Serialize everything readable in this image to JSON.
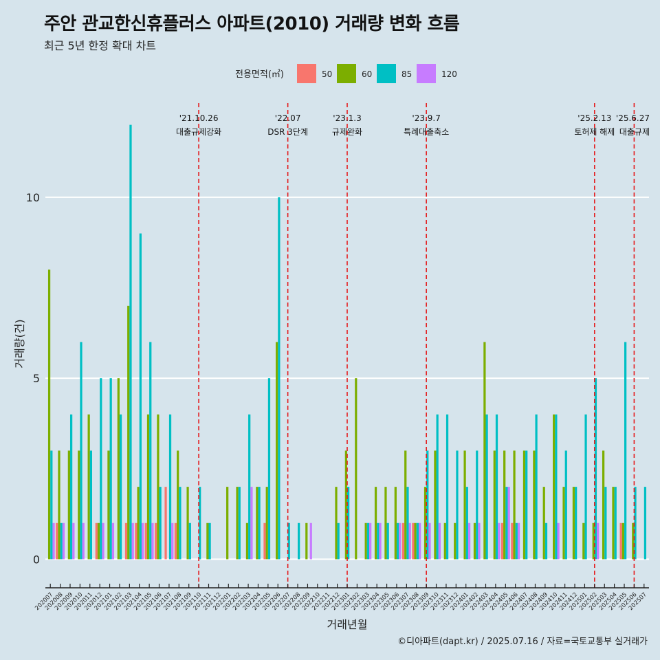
{
  "header": {
    "title": "주안 관교한신휴플러스 아파트(2010) 거래량 변화 흐름",
    "subtitle": "최근 5년 한정 확대 차트"
  },
  "caption": "©디아파트(dapt.kr) / 2025.07.16 / 자료=국토교통부 실거래가",
  "colors": {
    "background": "#d6e4ec",
    "50": "#f8766d",
    "60": "#7cae00",
    "85": "#00bfc4",
    "120": "#c77cff",
    "event_line": "#e41a1c",
    "grid": "#ffffff"
  },
  "chart_data": {
    "type": "bar",
    "title": "주안 관교한신휴플러스 아파트(2010) 거래량 변화 흐름",
    "subtitle": "최근 5년 한정 확대 차트",
    "xlabel": "거래년월",
    "ylabel": "거래량(건)",
    "ylim": [
      -0.6,
      12.6
    ],
    "yticks": [
      0,
      5,
      10
    ],
    "legend_title": "전용면적(㎡)",
    "legend_position": "top",
    "categories": [
      "202007",
      "202008",
      "202009",
      "202010",
      "202011",
      "202012",
      "202101",
      "202102",
      "202103",
      "202104",
      "202105",
      "202106",
      "202107",
      "202108",
      "202109",
      "202110",
      "202111",
      "202112",
      "202201",
      "202202",
      "202203",
      "202204",
      "202205",
      "202206",
      "202207",
      "202208",
      "202209",
      "202210",
      "202211",
      "202212",
      "202301",
      "202302",
      "202303",
      "202304",
      "202305",
      "202306",
      "202307",
      "202308",
      "202309",
      "202310",
      "202311",
      "202312",
      "202401",
      "202402",
      "202403",
      "202404",
      "202405",
      "202406",
      "202407",
      "202408",
      "202409",
      "202410",
      "202411",
      "202412",
      "202501",
      "202502",
      "202503",
      "202504",
      "202505",
      "202506",
      "202507"
    ],
    "series": [
      {
        "name": "50",
        "values": [
          0,
          1,
          0,
          0,
          0,
          1,
          0,
          0,
          1,
          1,
          1,
          1,
          2,
          1,
          0,
          0,
          0,
          0,
          0,
          0,
          0,
          0,
          1,
          0,
          0,
          0,
          0,
          0,
          0,
          0,
          0,
          0,
          0,
          0,
          0,
          0,
          1,
          1,
          0,
          0,
          0,
          0,
          0,
          0,
          0,
          0,
          1,
          1,
          0,
          0,
          0,
          0,
          0,
          0,
          0,
          0,
          0,
          0,
          1,
          0,
          0
        ]
      },
      {
        "name": "60",
        "values": [
          8,
          3,
          3,
          3,
          4,
          1,
          3,
          5,
          7,
          2,
          4,
          4,
          0,
          3,
          2,
          0,
          1,
          0,
          2,
          2,
          1,
          2,
          2,
          6,
          0,
          0,
          1,
          0,
          0,
          2,
          3,
          5,
          1,
          2,
          2,
          2,
          3,
          1,
          2,
          3,
          1,
          1,
          3,
          1,
          6,
          3,
          3,
          3,
          3,
          3,
          2,
          4,
          2,
          2,
          1,
          1,
          3,
          2,
          1,
          1,
          0
        ]
      },
      {
        "name": "85",
        "values": [
          3,
          1,
          4,
          6,
          3,
          5,
          5,
          4,
          12,
          9,
          6,
          2,
          4,
          2,
          1,
          2,
          1,
          0,
          0,
          2,
          4,
          2,
          5,
          10,
          1,
          1,
          0,
          0,
          0,
          1,
          2,
          0,
          1,
          1,
          1,
          1,
          2,
          1,
          3,
          4,
          4,
          3,
          2,
          3,
          4,
          4,
          2,
          1,
          3,
          4,
          1,
          4,
          3,
          2,
          4,
          5,
          2,
          2,
          6,
          2,
          2
        ]
      },
      {
        "name": "120",
        "values": [
          1,
          1,
          1,
          1,
          0,
          1,
          1,
          0,
          1,
          1,
          1,
          0,
          1,
          0,
          0,
          0,
          0,
          0,
          0,
          0,
          2,
          0,
          0,
          0,
          0,
          0,
          1,
          0,
          0,
          0,
          0,
          0,
          1,
          1,
          0,
          1,
          1,
          1,
          1,
          1,
          0,
          0,
          1,
          1,
          0,
          1,
          2,
          1,
          0,
          0,
          0,
          1,
          0,
          0,
          0,
          1,
          0,
          0,
          0,
          0,
          0
        ]
      }
    ],
    "events": [
      {
        "date": "'21.10.26",
        "label": "대출규제강화",
        "category": "202110"
      },
      {
        "date": "'22.07",
        "label": "DSR 3단계",
        "category": "202207"
      },
      {
        "date": "'23.1.3",
        "label": "규제완화",
        "category": "202301"
      },
      {
        "date": "'23.9.7",
        "label": "특례대출축소",
        "category": "202309"
      },
      {
        "date": "'25.2.13",
        "label": "토허제 해제",
        "category": "202502"
      },
      {
        "date": "'25.6.27",
        "label": "대출규제",
        "category": "202506"
      }
    ]
  }
}
